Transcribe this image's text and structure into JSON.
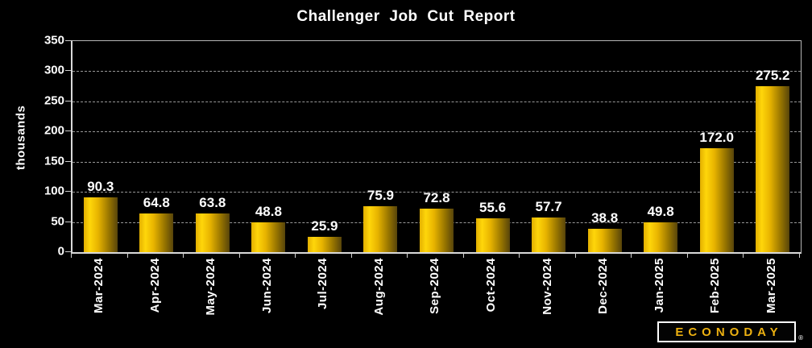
{
  "title": "Challenger Job Cut Report",
  "chart_data": {
    "type": "bar",
    "title": "Challenger Job Cut Report",
    "categories": [
      "Mar-2024",
      "Apr-2024",
      "May-2024",
      "Jun-2024",
      "Jul-2024",
      "Aug-2024",
      "Sep-2024",
      "Oct-2024",
      "Nov-2024",
      "Dec-2024",
      "Jan-2025",
      "Feb-2025",
      "Mar-2025"
    ],
    "values": [
      90.3,
      64.8,
      63.8,
      48.8,
      25.9,
      75.9,
      72.8,
      55.6,
      57.7,
      38.8,
      49.8,
      172.0,
      275.2
    ],
    "value_labels": [
      "90.3",
      "64.8",
      "63.8",
      "48.8",
      "25.9",
      "75.9",
      "72.8",
      "55.6",
      "57.7",
      "38.8",
      "49.8",
      "172.0",
      "275.2"
    ],
    "xlabel": "",
    "ylabel": "thousands",
    "ylim": [
      0,
      350
    ],
    "yticks": [
      0,
      50,
      100,
      150,
      200,
      250,
      300,
      350
    ],
    "grid": "horizontal-dashed",
    "legend": "none",
    "colors": {
      "background": "#000000",
      "text": "#ffffff",
      "bar_gradient_light": "#ffd60a",
      "bar_gradient_dark": "#57440a",
      "gridline": "#989898",
      "axis": "#d9d9d9"
    }
  },
  "branding": {
    "logo_text": "ECONODAY",
    "registered_mark": "®",
    "logo_text_color": "#edb111"
  }
}
